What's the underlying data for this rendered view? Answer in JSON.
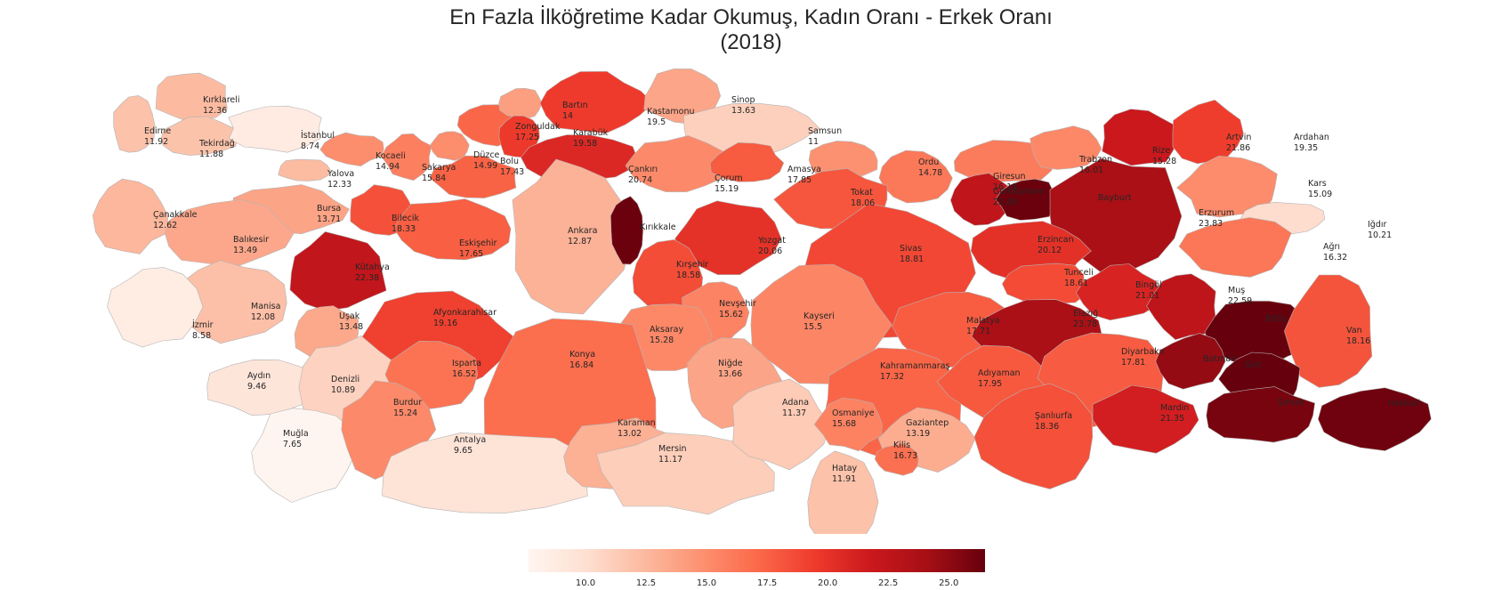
{
  "title": {
    "line1": "En Fazla İlköğretime Kadar Okumuş, Kadın Oranı - Erkek Oranı",
    "line2": "(2018)"
  },
  "colormap": {
    "name": "Reds",
    "stops": [
      "#fff5f0",
      "#fee0d2",
      "#fcbba1",
      "#fc9272",
      "#fb6a4a",
      "#ef3b2c",
      "#cb181d",
      "#a50f15",
      "#67000d"
    ],
    "vmin": 7.65,
    "vmax": 26.5,
    "ticks": [
      10.0,
      12.5,
      15.0,
      17.5,
      20.0,
      22.5,
      25.0
    ]
  },
  "border_color": "#b4b4b4",
  "chart_data": {
    "type": "choropleth",
    "title": "En Fazla İlköğretime Kadar Okumuş, Kadın Oranı - Erkek Oranı (2018)",
    "provinces": [
      {
        "name": "Edirne",
        "value": 11.92
      },
      {
        "name": "Kırklareli",
        "value": 12.36
      },
      {
        "name": "Tekirdağ",
        "value": 11.88
      },
      {
        "name": "İstanbul",
        "value": 8.74
      },
      {
        "name": "Kocaeli",
        "value": 14.94
      },
      {
        "name": "Sakarya",
        "value": 15.84
      },
      {
        "name": "Düzce",
        "value": 14.99
      },
      {
        "name": "Zonguldak",
        "value": 17.25
      },
      {
        "name": "Bartın",
        "value": 14.0
      },
      {
        "name": "Kastamonu",
        "value": 19.5
      },
      {
        "name": "Sinop",
        "value": 13.63
      },
      {
        "name": "Samsun",
        "value": 11.0
      },
      {
        "name": "Karabük",
        "value": 19.58
      },
      {
        "name": "Yalova",
        "value": 12.33
      },
      {
        "name": "Bolu",
        "value": 17.43
      },
      {
        "name": "Çankırı",
        "value": 20.74
      },
      {
        "name": "Çorum",
        "value": 15.19
      },
      {
        "name": "Amasya",
        "value": 17.85
      },
      {
        "name": "Ordu",
        "value": 14.78
      },
      {
        "name": "Giresun",
        "value": 16.19
      },
      {
        "name": "Trabzon",
        "value": 16.01
      },
      {
        "name": "Rize",
        "value": 15.28
      },
      {
        "name": "Artvin",
        "value": 21.86
      },
      {
        "name": "Ardahan",
        "value": 19.35
      },
      {
        "name": "Kars",
        "value": 15.09
      },
      {
        "name": "Iğdır",
        "value": 10.21
      },
      {
        "name": "Ağrı",
        "value": 16.32
      },
      {
        "name": "Çanakkale",
        "value": 12.62
      },
      {
        "name": "Bursa",
        "value": 13.71
      },
      {
        "name": "Bilecik",
        "value": 18.33
      },
      {
        "name": "Balıkesir",
        "value": 13.49
      },
      {
        "name": "Eskişehir",
        "value": 17.65
      },
      {
        "name": "Ankara",
        "value": 12.87
      },
      {
        "name": "Kırıkkale",
        "value": null
      },
      {
        "name": "Yozgat",
        "value": 20.06
      },
      {
        "name": "Tokat",
        "value": 18.06
      },
      {
        "name": "Sivas",
        "value": 18.81
      },
      {
        "name": "Gümüşhane",
        "value": 22.49
      },
      {
        "name": "Bayburt",
        "value": null
      },
      {
        "name": "Erzurum",
        "value": 23.83
      },
      {
        "name": "Erzincan",
        "value": 20.12
      },
      {
        "name": "Kütahya",
        "value": 22.38
      },
      {
        "name": "Kırşehir",
        "value": 18.58
      },
      {
        "name": "Tunceli",
        "value": 18.61
      },
      {
        "name": "Bingöl",
        "value": 21.01
      },
      {
        "name": "Muş",
        "value": 22.59
      },
      {
        "name": "Manisa",
        "value": 12.08
      },
      {
        "name": "İzmir",
        "value": 8.58
      },
      {
        "name": "Uşak",
        "value": 13.48
      },
      {
        "name": "Afyonkarahisar",
        "value": 19.16
      },
      {
        "name": "Nevşehir",
        "value": 15.62
      },
      {
        "name": "Kayseri",
        "value": 15.5
      },
      {
        "name": "Aksaray",
        "value": 15.28
      },
      {
        "name": "Malatya",
        "value": 17.71
      },
      {
        "name": "Elazığ",
        "value": 23.78
      },
      {
        "name": "Bitlis",
        "value": null
      },
      {
        "name": "Van",
        "value": 18.16
      },
      {
        "name": "Aydın",
        "value": 9.46
      },
      {
        "name": "Denizli",
        "value": 10.89
      },
      {
        "name": "Isparta",
        "value": 16.52
      },
      {
        "name": "Konya",
        "value": 16.84
      },
      {
        "name": "Niğde",
        "value": 13.66
      },
      {
        "name": "Kahramanmaraş",
        "value": 17.32
      },
      {
        "name": "Adıyaman",
        "value": 17.95
      },
      {
        "name": "Diyarbakır",
        "value": 17.81
      },
      {
        "name": "Batman",
        "value": null
      },
      {
        "name": "Siirt",
        "value": null
      },
      {
        "name": "Muğla",
        "value": 7.65
      },
      {
        "name": "Burdur",
        "value": 15.24
      },
      {
        "name": "Antalya",
        "value": 9.65
      },
      {
        "name": "Karaman",
        "value": 13.02
      },
      {
        "name": "Mersin",
        "value": 11.17
      },
      {
        "name": "Adana",
        "value": 11.37
      },
      {
        "name": "Osmaniye",
        "value": 15.68
      },
      {
        "name": "Gaziantep",
        "value": 13.19
      },
      {
        "name": "Kilis",
        "value": 16.73
      },
      {
        "name": "Hatay",
        "value": 11.91
      },
      {
        "name": "Şanlıurfa",
        "value": 18.36
      },
      {
        "name": "Mardin",
        "value": 21.35
      },
      {
        "name": "Şırnak",
        "value": null
      },
      {
        "name": "Hakkari",
        "value": null
      }
    ]
  }
}
